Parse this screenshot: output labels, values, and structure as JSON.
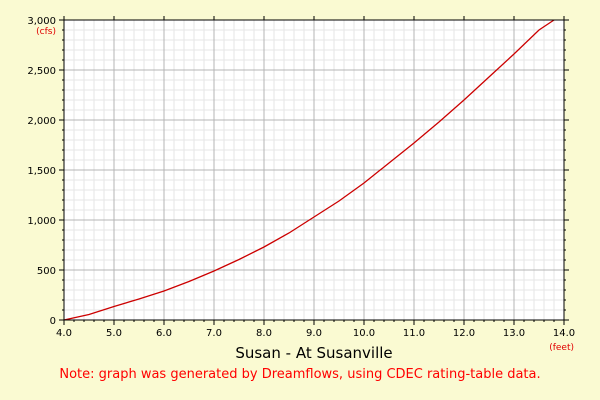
{
  "colors": {
    "background": "#fafad2",
    "plot_background": "#ffffff",
    "major_grid": "#b4b4b4",
    "minor_grid": "#e6e6e6",
    "curve": "#cc0000",
    "note": "#ff0000",
    "unit": "#e00000"
  },
  "chart_data": {
    "type": "line",
    "title": "Susan - At Susanville",
    "note": "Note: graph was generated by Dreamflows, using CDEC rating-table data.",
    "xlabel": "(feet)",
    "ylabel": "(cfs)",
    "xlim": [
      4.0,
      14.0
    ],
    "ylim": [
      0,
      3000
    ],
    "x_ticks": [
      "4.0",
      "5.0",
      "6.0",
      "7.0",
      "8.0",
      "9.0",
      "10.0",
      "11.0",
      "12.0",
      "13.0",
      "14.0"
    ],
    "y_ticks": [
      "0",
      "500",
      "1,000",
      "1,500",
      "2,000",
      "2,500",
      "3,000"
    ],
    "grid": true,
    "series": [
      {
        "x": [
          4.0,
          4.5,
          5.0,
          5.5,
          6.0,
          6.5,
          7.0,
          7.5,
          8.0,
          8.5,
          9.0,
          9.5,
          10.0,
          10.5,
          11.0,
          11.5,
          12.0,
          12.5,
          13.0,
          13.5,
          13.8
        ],
        "y": [
          0,
          55,
          135,
          210,
          290,
          385,
          490,
          605,
          730,
          870,
          1030,
          1190,
          1370,
          1570,
          1770,
          1980,
          2200,
          2430,
          2660,
          2900,
          3000
        ]
      }
    ]
  }
}
